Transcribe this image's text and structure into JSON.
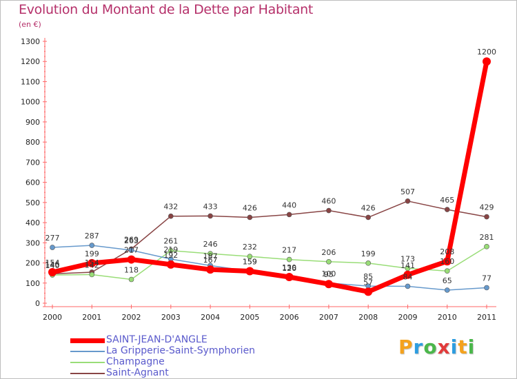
{
  "header": {
    "title": "Evolution du Montant de la Dette par Habitant",
    "subtitle": "(en €)"
  },
  "brand": {
    "letters": [
      "P",
      "r",
      "o",
      "x",
      "i",
      "t",
      "i"
    ],
    "colors": [
      "#f4a21d",
      "#2d9de0",
      "#4bb74b",
      "#e23b3b",
      "#2d9de0",
      "#f4a21d",
      "#4bb74b"
    ]
  },
  "chart_data": {
    "type": "line",
    "title": "Evolution du Montant de la Dette par Habitant",
    "xlabel": "",
    "ylabel": "(en €)",
    "x": [
      "2000",
      "2001",
      "2002",
      "2003",
      "2004",
      "2005",
      "2006",
      "2007",
      "2008",
      "2009",
      "2010",
      "2011"
    ],
    "ylim": [
      0,
      1300
    ],
    "yticks": [
      "0",
      "100",
      "200",
      "300",
      "400",
      "500",
      "600",
      "700",
      "800",
      "900",
      "1000",
      "1100",
      "1200",
      "1300"
    ],
    "grid": false,
    "legend": "bottom-left",
    "series": [
      {
        "name": "SAINT-JEAN-D'ANGLE",
        "color": "#ff0000",
        "values": [
          154,
          199,
          217,
          192,
          167,
          159,
          130,
          95,
          57,
          141,
          208,
          1200
        ],
        "labels": [
          "154",
          "199",
          "217",
          "192",
          "167",
          "159",
          "130",
          "95",
          "57",
          "141",
          "208",
          "1200"
        ]
      },
      {
        "name": "La Gripperie-Saint-Symphorien",
        "color": "#6699cc",
        "values": [
          277,
          287,
          263,
          219,
          187,
          159,
          126,
          100,
          85,
          84,
          65,
          77
        ],
        "labels": [
          "277",
          "287",
          "263",
          "219",
          "187",
          "159",
          "126",
          "100",
          "85",
          "84",
          "65",
          "77"
        ]
      },
      {
        "name": "Champagne",
        "color": "#99dd77",
        "values": [
          140,
          142,
          118,
          261,
          246,
          232,
          217,
          206,
          199,
          173,
          160,
          281
        ],
        "labels": [
          "140",
          "142",
          "118",
          "261",
          "246",
          "232",
          "217",
          "206",
          "199",
          "173",
          "160",
          "281"
        ]
      },
      {
        "name": "Saint-Agnant",
        "color": "#884444",
        "values": [
          146,
          154,
          269,
          432,
          433,
          426,
          440,
          460,
          426,
          507,
          465,
          429
        ],
        "labels": [
          "146",
          "154",
          "269",
          "432",
          "433",
          "426",
          "440",
          "460",
          "426",
          "507",
          "465",
          "429"
        ]
      }
    ]
  }
}
